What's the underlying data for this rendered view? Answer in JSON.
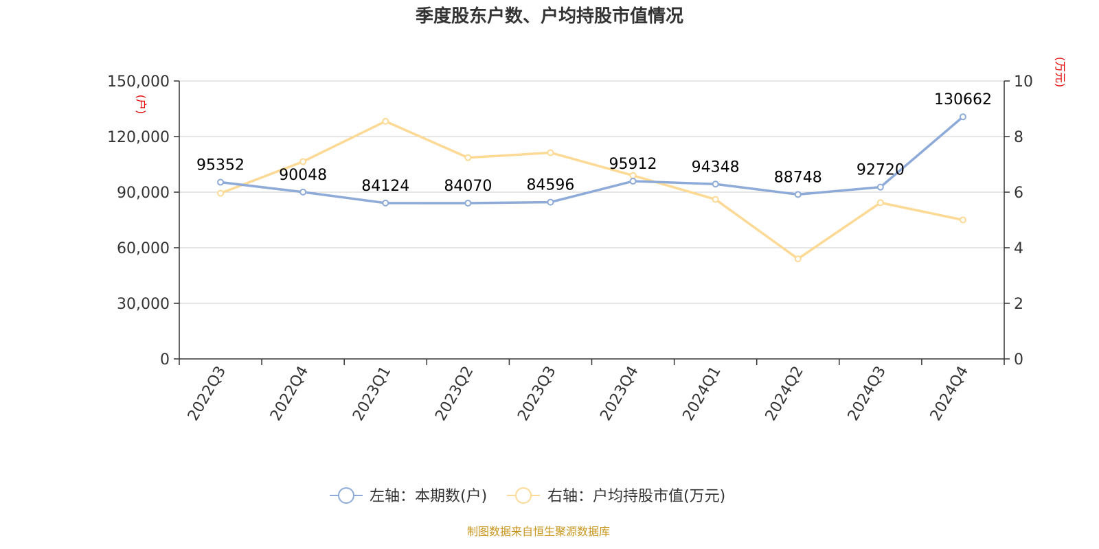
{
  "chart_data": {
    "type": "line",
    "title": "季度股东户数、户均持股市值情况",
    "categories": [
      "2022Q3",
      "2022Q4",
      "2023Q1",
      "2023Q2",
      "2023Q3",
      "2023Q4",
      "2024Q1",
      "2024Q2",
      "2024Q3",
      "2024Q4"
    ],
    "left_axis": {
      "unit": "(户)",
      "ylim": [
        0,
        150000
      ],
      "ticks": [
        "0",
        "30,000",
        "60,000",
        "90,000",
        "120,000",
        "150,000"
      ],
      "tick_values": [
        0,
        30000,
        60000,
        90000,
        120000,
        150000
      ]
    },
    "right_axis": {
      "unit": "(万元)",
      "ylim": [
        0,
        10
      ],
      "ticks": [
        "0",
        "2",
        "4",
        "6",
        "8",
        "10"
      ],
      "tick_values": [
        0,
        2,
        4,
        6,
        8,
        10
      ]
    },
    "series": [
      {
        "name": "左轴：本期数(户)",
        "axis": "left",
        "color": "#8eaad8",
        "values": [
          95352,
          90048,
          84124,
          84070,
          84596,
          95912,
          94348,
          88748,
          92720,
          130662
        ],
        "labels": [
          "95352",
          "90048",
          "84124",
          "84070",
          "84596",
          "95912",
          "94348",
          "88748",
          "92720",
          "130662"
        ]
      },
      {
        "name": "右轴：户均持股市值(万元)",
        "axis": "right",
        "color": "#fcd995",
        "values": [
          5.96,
          7.1,
          8.55,
          7.24,
          7.42,
          6.6,
          5.74,
          3.6,
          5.62,
          5.0
        ]
      }
    ],
    "grid": true,
    "legend_position": "bottom-center",
    "source_note": "制图数据来自恒生聚源数据库"
  }
}
